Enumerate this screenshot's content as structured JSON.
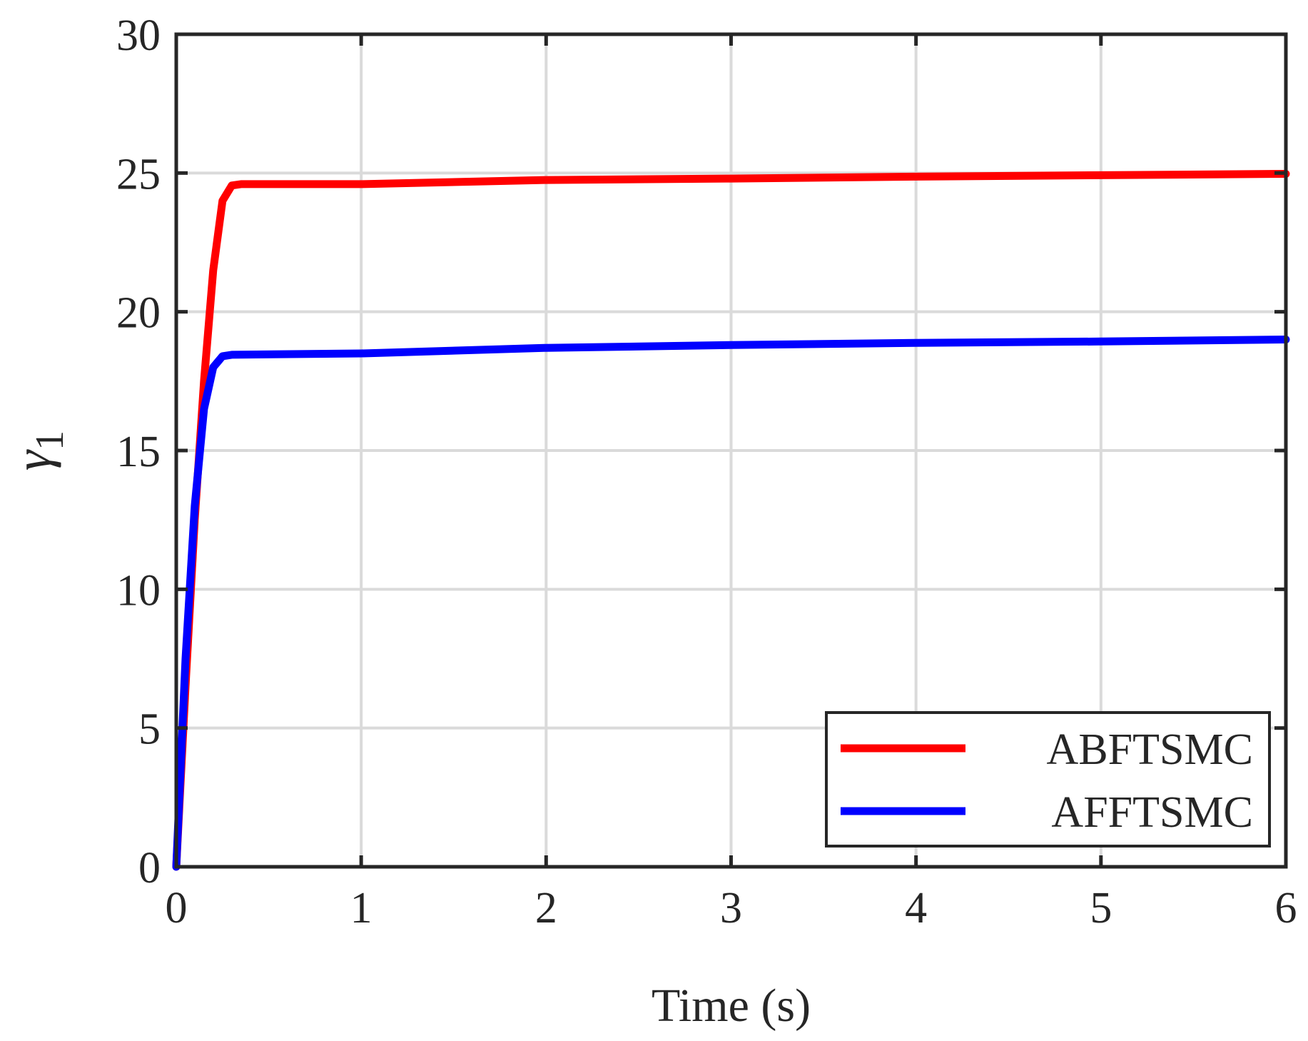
{
  "chart_data": {
    "type": "line",
    "title": "",
    "xlabel": "Time (s)",
    "ylabel": {
      "symbol": "γ",
      "subscript": "1"
    },
    "xlim": [
      0,
      6
    ],
    "ylim": [
      0,
      30
    ],
    "xticks": [
      0,
      1,
      2,
      3,
      4,
      5,
      6
    ],
    "yticks": [
      0,
      5,
      10,
      15,
      20,
      25,
      30
    ],
    "xtick_labels": [
      "0",
      "1",
      "2",
      "3",
      "4",
      "5",
      "6"
    ],
    "ytick_labels": [
      "0",
      "5",
      "10",
      "15",
      "20",
      "25",
      "30"
    ],
    "grid": true,
    "legend_position": "bottom-right",
    "series": [
      {
        "name": "ABFTSMC",
        "color": "#ff0000",
        "x": [
          0,
          0.05,
          0.1,
          0.15,
          0.2,
          0.25,
          0.3,
          0.35,
          1,
          2,
          3,
          4,
          5,
          6
        ],
        "y": [
          0,
          6.5,
          12.5,
          17.5,
          21.5,
          24.0,
          24.55,
          24.6,
          24.6,
          24.75,
          24.8,
          24.87,
          24.92,
          24.97
        ]
      },
      {
        "name": "AFFTSMC",
        "color": "#0000ff",
        "x": [
          0,
          0.05,
          0.1,
          0.15,
          0.2,
          0.25,
          0.3,
          1,
          2,
          3,
          4,
          5,
          6
        ],
        "y": [
          0,
          7.5,
          13.0,
          16.5,
          18.0,
          18.4,
          18.45,
          18.5,
          18.7,
          18.8,
          18.88,
          18.93,
          19.0
        ]
      }
    ]
  }
}
